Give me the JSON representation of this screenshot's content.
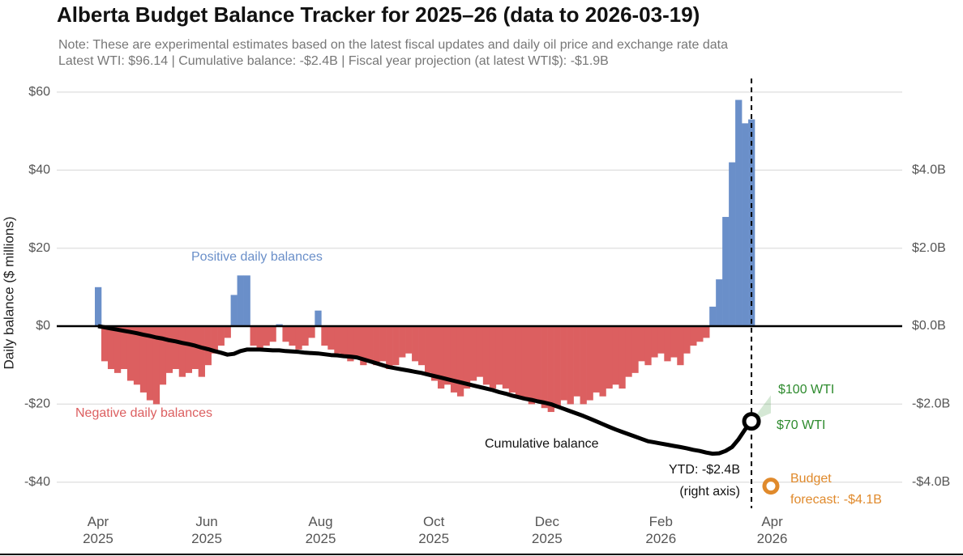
{
  "chart_data": {
    "type": "bar",
    "title": "Alberta Budget Balance Tracker for 2025–26 (data to 2026-03-19)",
    "notes": [
      "Note: These are experimental estimates based on the latest fiscal updates and daily oil price and exchange rate data",
      "Latest WTI: $96.14 | Cumulative balance: -$2.4B | Fiscal year projection (at latest WTI$): -$1.9B"
    ],
    "y_label": "Daily balance ($ millions)",
    "categories": [
      null,
      null,
      null,
      null,
      null,
      null,
      null,
      null,
      null,
      null,
      null,
      null,
      null,
      null,
      null,
      null,
      null,
      null,
      null,
      null,
      null,
      null,
      null,
      null,
      null,
      null,
      null,
      null,
      null,
      null,
      null,
      null,
      null,
      null,
      null,
      null,
      null,
      null,
      null,
      null,
      null,
      null,
      null,
      null,
      null,
      null,
      null,
      null,
      null,
      null,
      null,
      null,
      null,
      null,
      null,
      null,
      null,
      null,
      null,
      null,
      null,
      null,
      null,
      null,
      null,
      null,
      null,
      null,
      null,
      null,
      null,
      null,
      null,
      null,
      null,
      null,
      null,
      null,
      null,
      null,
      null,
      null,
      null,
      null,
      null,
      null,
      null,
      null,
      null,
      null,
      null,
      null,
      null,
      null,
      null,
      null,
      null,
      null,
      null,
      null,
      null,
      null
    ],
    "series": [
      {
        "type": "bar",
        "color": "#6a8fc9",
        "negative_color": "#dc5f60",
        "values": [
          10,
          -9,
          -11,
          -12,
          -11,
          -14,
          -15,
          -17,
          -19,
          -20,
          -15,
          -12,
          -11,
          -13,
          -12,
          -11,
          -13,
          -10,
          -7,
          -5,
          -3,
          8,
          13,
          13,
          -5,
          -6,
          -5,
          -4,
          0.5,
          -4,
          -5,
          -6,
          -5,
          -3,
          4,
          -5,
          -6,
          -7,
          -8,
          -9,
          -8,
          -10,
          -9,
          -10,
          -9,
          -11,
          -10,
          -8,
          -7,
          -9,
          -10,
          -12,
          -14,
          -16,
          -15,
          -17,
          -18,
          -16,
          -14,
          -13,
          -15,
          -16,
          -15,
          -16,
          -17,
          -18,
          -19,
          -20,
          -19,
          -21,
          -22,
          -21,
          -19,
          -20,
          -18,
          -20,
          -19,
          -17,
          -18,
          -16,
          -15,
          -16,
          -13,
          -12,
          -9,
          -10,
          -8,
          -7,
          -9,
          -8,
          -10,
          -7,
          -5,
          -4,
          -3,
          5,
          12,
          28,
          42,
          58,
          52,
          53
        ]
      },
      {
        "type": "line",
        "axis": "y2",
        "color": "#000000",
        "values": [
          0,
          -0.03,
          -0.06,
          -0.09,
          -0.12,
          -0.15,
          -0.18,
          -0.22,
          -0.25,
          -0.29,
          -0.32,
          -0.36,
          -0.39,
          -0.43,
          -0.46,
          -0.5,
          -0.55,
          -0.59,
          -0.64,
          -0.68,
          -0.73,
          -0.71,
          -0.64,
          -0.6,
          -0.6,
          -0.6,
          -0.61,
          -0.62,
          -0.62,
          -0.64,
          -0.65,
          -0.66,
          -0.68,
          -0.69,
          -0.7,
          -0.72,
          -0.74,
          -0.75,
          -0.77,
          -0.78,
          -0.8,
          -0.85,
          -0.9,
          -0.95,
          -1.0,
          -1.05,
          -1.08,
          -1.11,
          -1.14,
          -1.17,
          -1.2,
          -1.24,
          -1.28,
          -1.32,
          -1.36,
          -1.4,
          -1.44,
          -1.48,
          -1.52,
          -1.56,
          -1.6,
          -1.64,
          -1.69,
          -1.73,
          -1.78,
          -1.82,
          -1.86,
          -1.89,
          -1.93,
          -1.96,
          -2.0,
          -2.06,
          -2.12,
          -2.18,
          -2.24,
          -2.3,
          -2.37,
          -2.44,
          -2.51,
          -2.58,
          -2.65,
          -2.71,
          -2.77,
          -2.83,
          -2.89,
          -2.95,
          -2.98,
          -3.01,
          -3.04,
          -3.07,
          -3.1,
          -3.13,
          -3.17,
          -3.2,
          -3.24,
          -3.27,
          -3.26,
          -3.2,
          -3.1,
          -2.9,
          -2.65,
          -2.44
        ]
      }
    ],
    "scenarios": {
      "color": "#2e8b2e",
      "x": 104,
      "items": [
        {
          "label": "$100 WTI",
          "value": -1.77
        },
        {
          "label": "$70 WTI",
          "value": -2.23
        }
      ]
    },
    "budget_forecast": {
      "label": "Budget\nforecast: -$4.1B",
      "value": -4.1,
      "x": 104,
      "color": "#e08a2c"
    },
    "annotations": {
      "positive": "Positive daily balances",
      "negative": "Negative daily balances",
      "cumulative": "Cumulative balance",
      "ytd": "YTD: -$2.4B",
      "right_axis": "(right axis)"
    },
    "xlim": [
      -0.5,
      124.3
    ],
    "xticks": [
      {
        "value": 0,
        "label": "Apr\n2025"
      },
      {
        "value": 16.8,
        "label": "Jun\n2025"
      },
      {
        "value": 34.4,
        "label": "Aug\n2025"
      },
      {
        "value": 51.9,
        "label": "Oct\n2025"
      },
      {
        "value": 69.4,
        "label": "Dec\n2025"
      },
      {
        "value": 87,
        "label": "Feb\n2026"
      },
      {
        "value": 104.2,
        "label": "Apr\n2026"
      }
    ],
    "ylim": [
      -45,
      63
    ],
    "yticks": [
      {
        "value": 60,
        "label": "$60"
      },
      {
        "value": 40,
        "label": "$40"
      },
      {
        "value": 20,
        "label": "$20"
      },
      {
        "value": 0,
        "label": "$0"
      },
      {
        "value": -20,
        "label": "-$20"
      },
      {
        "value": -40,
        "label": "-$40"
      }
    ],
    "y2lim": [
      -4.5,
      6.3
    ],
    "y2ticks": [
      {
        "value": 4,
        "label": "$4.0B"
      },
      {
        "value": 2,
        "label": "$2.0B"
      },
      {
        "value": 0,
        "label": "$0.0B"
      },
      {
        "value": -2,
        "label": "-$2.0B"
      },
      {
        "value": -4,
        "label": "-$4.0B"
      }
    ],
    "grid": true
  }
}
